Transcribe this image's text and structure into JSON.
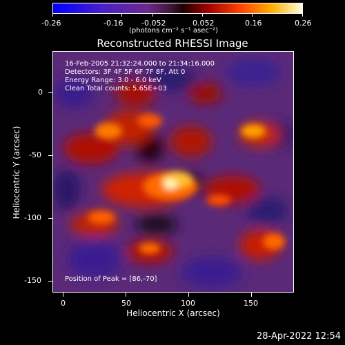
{
  "colorbar": {
    "ticks": [
      "-0.26",
      "-0.16",
      "-0.052",
      "0.052",
      "0.16",
      "0.26"
    ],
    "unit_label": "(photons cm⁻² s⁻¹ asec⁻²)"
  },
  "image": {
    "title": "Reconstructed RHESSI Image",
    "info": {
      "time_range": "16-Feb-2005 21:32:24.000 to 21:34:16.000",
      "detectors": "Detectors: 3F 4F 5F 6F 7F 8F, Att 0",
      "energy_range": "Energy Range: 3.0 - 6.0 keV",
      "method": "Clean     Total counts: 5.65E+03",
      "peak": "Position of Peak = [86,-70]"
    },
    "x_axis": {
      "label": "Heliocentric X (arcsec)",
      "ticks": [
        "0",
        "50",
        "100",
        "150"
      ]
    },
    "y_axis": {
      "label": "Heliocentric Y (arcsec)",
      "ticks": [
        "0",
        "-50",
        "-100",
        "-150"
      ]
    }
  },
  "timestamp": "28-Apr-2022 12:54",
  "colors": {
    "background": "#000000",
    "text": "#ffffff"
  }
}
